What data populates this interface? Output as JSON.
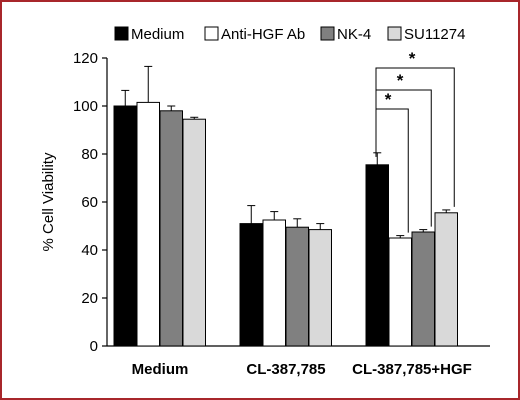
{
  "chart_data": {
    "type": "bar",
    "title": "",
    "xlabel": "",
    "ylabel": "% Cell Viability",
    "ylim": [
      0,
      120
    ],
    "yticks": [
      0,
      20,
      40,
      60,
      80,
      100,
      120
    ],
    "grid": false,
    "legend_position": "top",
    "categories": [
      "Medium",
      "CL-387,785",
      "CL-387,785+HGF"
    ],
    "series": [
      {
        "name": "Medium",
        "color": "#000000",
        "values": [
          100,
          51,
          75.5
        ],
        "errors": [
          6.5,
          7.5,
          5
        ]
      },
      {
        "name": "Anti-HGF Ab",
        "color": "#ffffff",
        "values": [
          101.5,
          52.5,
          45
        ],
        "errors": [
          15,
          3.5,
          1
        ]
      },
      {
        "name": "NK-4",
        "color": "#808080",
        "values": [
          98,
          49.5,
          47.5
        ],
        "errors": [
          2,
          3.5,
          1
        ]
      },
      {
        "name": "SU11274",
        "color": "#d9d9d9",
        "values": [
          94.5,
          48.5,
          55.5
        ],
        "errors": [
          0.8,
          2.5,
          1.2
        ]
      }
    ],
    "significance": [
      {
        "category": 2,
        "from_series": 0,
        "to_series": 1,
        "label": "*"
      },
      {
        "category": 2,
        "from_series": 0,
        "to_series": 2,
        "label": "*"
      },
      {
        "category": 2,
        "from_series": 0,
        "to_series": 3,
        "label": "*"
      }
    ]
  }
}
